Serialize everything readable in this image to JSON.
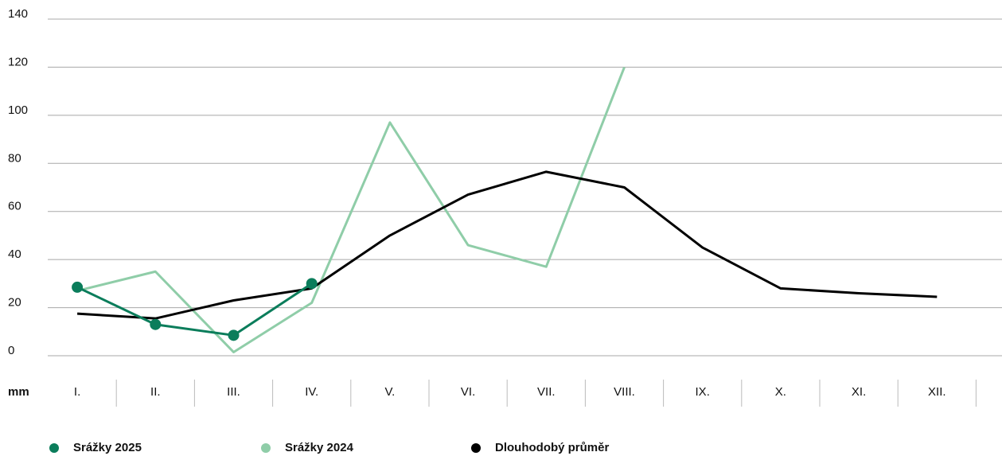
{
  "chart_data": {
    "type": "line",
    "ylabel": "mm",
    "categories": [
      "I.",
      "II.",
      "III.",
      "IV.",
      "V.",
      "VI.",
      "VII.",
      "VIII.",
      "IX.",
      "X.",
      "XI.",
      "XII."
    ],
    "series": [
      {
        "name": "Srážky 2025",
        "color": "#0b7d5b",
        "markers": true,
        "values": [
          28.5,
          13,
          8.5,
          30,
          null,
          null,
          null,
          null,
          null,
          null,
          null,
          null
        ]
      },
      {
        "name": "Srážky 2024",
        "color": "#8fcda8",
        "markers": false,
        "values": [
          27,
          35,
          1.5,
          22,
          97,
          46,
          37,
          120,
          null,
          null,
          null,
          null
        ]
      },
      {
        "name": "Dlouhodobý průměr",
        "color": "#000000",
        "markers": false,
        "values": [
          17.5,
          15.5,
          23,
          28,
          50,
          67,
          76.5,
          70,
          45,
          28,
          26,
          24.5
        ]
      }
    ],
    "ylim": [
      0,
      140
    ],
    "yticks": [
      0,
      20,
      40,
      60,
      80,
      100,
      120,
      140
    ],
    "grid": true,
    "legend": "bottom"
  }
}
